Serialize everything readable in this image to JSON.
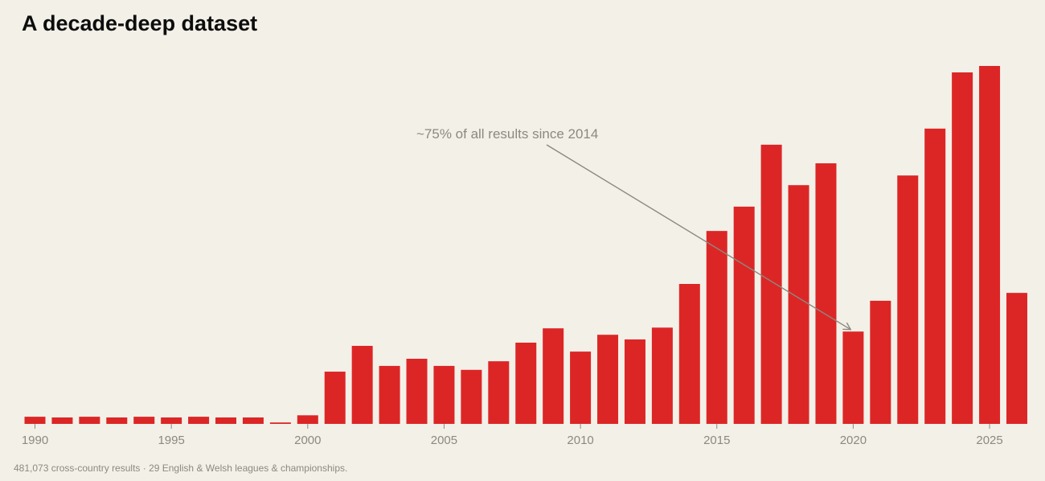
{
  "title": "A decade-deep dataset",
  "footer": "481,073 cross-country results · 29 English & Welsh leagues & championships.",
  "chart_data": {
    "type": "bar",
    "title": "A decade-deep dataset",
    "xlabel": "",
    "ylabel": "",
    "grid": false,
    "bar_color": "#dc2626",
    "x_ticks": [
      1990,
      1995,
      2000,
      2005,
      2010,
      2015,
      2020,
      2025
    ],
    "categories": [
      1990,
      1991,
      1992,
      1993,
      1994,
      1995,
      1996,
      1997,
      1998,
      1999,
      2000,
      2001,
      2002,
      2003,
      2004,
      2005,
      2006,
      2007,
      2008,
      2009,
      2010,
      2011,
      2012,
      2013,
      2014,
      2015,
      2016,
      2017,
      2018,
      2019,
      2020,
      2021,
      2022,
      2023,
      2024,
      2025,
      2026
    ],
    "values": [
      2.0,
      1.8,
      2.0,
      1.8,
      2.0,
      1.8,
      2.0,
      1.8,
      1.8,
      0.4,
      2.4,
      14.6,
      21.8,
      16.2,
      18.2,
      16.2,
      15.1,
      17.5,
      22.7,
      26.7,
      20.2,
      24.9,
      23.6,
      26.9,
      39.1,
      53.9,
      60.7,
      78.0,
      66.7,
      72.8,
      25.8,
      34.4,
      69.4,
      82.5,
      98.2,
      100.0,
      36.6
    ],
    "ylim": [
      0,
      100
    ],
    "annotations": [
      {
        "text": "~75% of all results since 2014",
        "arrow_to_category": 2020
      }
    ]
  }
}
